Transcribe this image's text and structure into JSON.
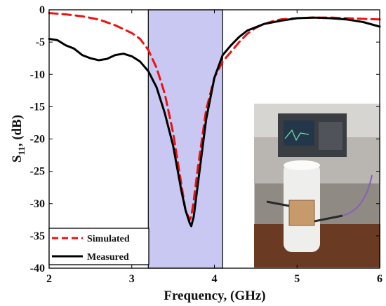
{
  "chart_data": {
    "type": "line",
    "title": "",
    "xlabel": "Frequency, (GHz)",
    "ylabel": {
      "main": "S",
      "sub": "11",
      "rest": ", (dB)"
    },
    "xlim": [
      2,
      6
    ],
    "ylim": [
      -40,
      0
    ],
    "xticks": [
      2,
      3,
      4,
      5,
      6
    ],
    "yticks": [
      0,
      -5,
      -10,
      -15,
      -20,
      -25,
      -30,
      -35,
      -40
    ],
    "xtick_labels": [
      "2",
      "3",
      "4",
      "5",
      "6"
    ],
    "ytick_labels": [
      "0",
      "-5",
      "-10",
      "-15",
      "-20",
      "-25",
      "-30",
      "-35",
      "-40"
    ],
    "grid": false,
    "legend_position": "bottom-left",
    "highlight_band": {
      "x_start": 3.2,
      "x_end": 4.1,
      "color": "#c8c8f2"
    },
    "series": [
      {
        "name": "Simulated",
        "color": "#ee1111",
        "style": "dashed",
        "x": [
          2.0,
          2.2,
          2.4,
          2.6,
          2.8,
          3.0,
          3.1,
          3.2,
          3.3,
          3.4,
          3.5,
          3.55,
          3.6,
          3.65,
          3.7,
          3.72,
          3.75,
          3.8,
          3.85,
          3.9,
          4.0,
          4.1,
          4.2,
          4.3,
          4.4,
          4.5,
          4.6,
          4.7,
          4.8,
          5.0,
          5.2,
          5.4,
          5.6,
          5.8,
          6.0
        ],
        "y": [
          -0.5,
          -0.7,
          -1.0,
          -1.5,
          -2.4,
          -3.6,
          -4.5,
          -6.2,
          -9.0,
          -13.0,
          -19.0,
          -23.0,
          -27.0,
          -31.0,
          -32.5,
          -32.0,
          -29.5,
          -24.5,
          -20.0,
          -15.5,
          -10.5,
          -8.0,
          -6.5,
          -5.0,
          -3.7,
          -2.8,
          -2.2,
          -1.8,
          -1.5,
          -1.3,
          -1.2,
          -1.2,
          -1.3,
          -1.4,
          -1.5
        ]
      },
      {
        "name": "Measured",
        "color": "#000000",
        "style": "solid",
        "x": [
          2.0,
          2.1,
          2.2,
          2.3,
          2.4,
          2.5,
          2.6,
          2.7,
          2.8,
          2.9,
          3.0,
          3.1,
          3.2,
          3.3,
          3.4,
          3.5,
          3.55,
          3.6,
          3.65,
          3.7,
          3.72,
          3.75,
          3.8,
          3.85,
          3.9,
          4.0,
          4.1,
          4.2,
          4.3,
          4.4,
          4.6,
          4.8,
          5.0,
          5.2,
          5.4,
          5.6,
          5.8,
          6.0
        ],
        "y": [
          -4.5,
          -4.7,
          -5.5,
          -6.0,
          -7.0,
          -7.5,
          -7.8,
          -7.6,
          -7.0,
          -6.8,
          -7.2,
          -8.0,
          -9.5,
          -12.0,
          -16.0,
          -21.0,
          -24.5,
          -28.0,
          -31.0,
          -33.0,
          -33.5,
          -32.0,
          -27.0,
          -22.0,
          -17.0,
          -10.5,
          -7.0,
          -5.5,
          -4.2,
          -3.2,
          -2.2,
          -1.7,
          -1.3,
          -1.2,
          -1.3,
          -1.5,
          -1.9,
          -2.6
        ]
      }
    ]
  }
}
